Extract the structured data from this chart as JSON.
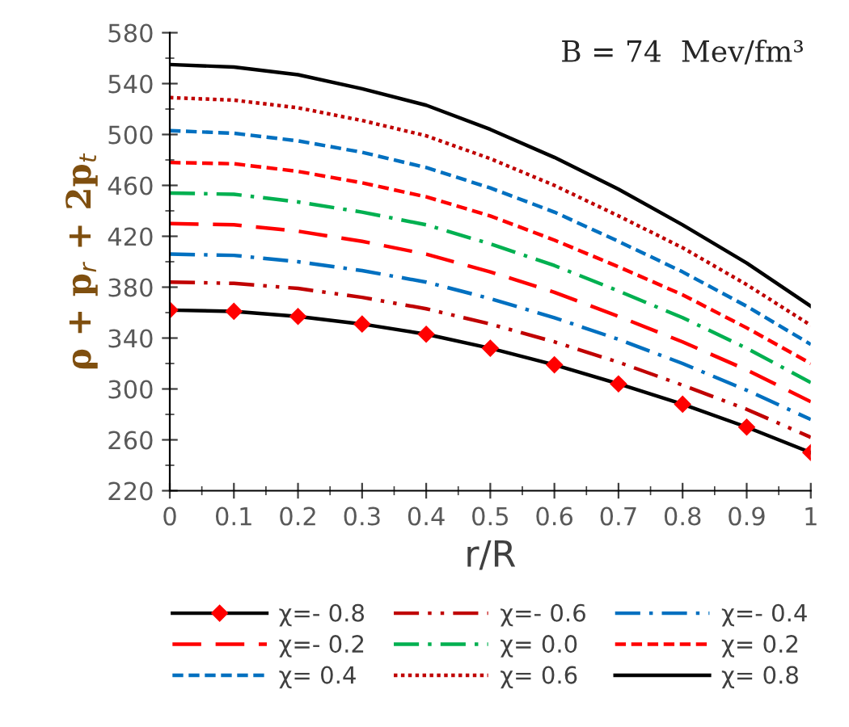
{
  "chart_data": {
    "type": "line",
    "xlabel": "r/R",
    "ylabel": "ρ + p$_{r}$ + 2p$_{t}$",
    "annotations": [
      "B = 74  Mev/fm³"
    ],
    "x": [
      0,
      0.1,
      0.2,
      0.3,
      0.4,
      0.5,
      0.6,
      0.7,
      0.8,
      0.9,
      1
    ],
    "xlim": [
      0,
      1
    ],
    "xticks": [
      0,
      0.1,
      0.2,
      0.3,
      0.4,
      0.5,
      0.6,
      0.7,
      0.8,
      0.9,
      1
    ],
    "ylim": [
      220,
      580
    ],
    "yticks": [
      220,
      260,
      300,
      340,
      380,
      420,
      460,
      500,
      540,
      580
    ],
    "grid": false,
    "legend": "bottom",
    "series": [
      {
        "name": "χ=- 0.8",
        "color": "#000000",
        "line_style": "solid",
        "marker": "diamond",
        "values": [
          362,
          361,
          357,
          351,
          343,
          332,
          319,
          304,
          288,
          270,
          250
        ]
      },
      {
        "name": "χ=- 0.6",
        "color": "#c00000",
        "line_style": "dashdotdot",
        "values": [
          384,
          383,
          379,
          372,
          363,
          351,
          337,
          321,
          303,
          284,
          262
        ]
      },
      {
        "name": "χ=- 0.4",
        "color": "#0070c0",
        "line_style": "dashdot",
        "values": [
          406,
          405,
          400,
          393,
          384,
          371,
          356,
          339,
          320,
          299,
          276
        ]
      },
      {
        "name": "χ=- 0.2",
        "color": "#ff0000",
        "line_style": "longdash",
        "values": [
          430,
          429,
          424,
          416,
          406,
          392,
          376,
          357,
          337,
          315,
          290
        ]
      },
      {
        "name": "χ= 0.0",
        "color": "#00b050",
        "line_style": "dashdot",
        "values": [
          454,
          453,
          447,
          439,
          429,
          414,
          397,
          377,
          356,
          332,
          305
        ]
      },
      {
        "name": "χ= 0.2",
        "color": "#ff0000",
        "line_style": "dashed",
        "values": [
          478,
          477,
          471,
          462,
          451,
          436,
          417,
          396,
          374,
          348,
          320
        ]
      },
      {
        "name": "χ= 0.4",
        "color": "#0070c0",
        "line_style": "dashed",
        "values": [
          503,
          501,
          495,
          486,
          474,
          458,
          439,
          416,
          392,
          365,
          335
        ]
      },
      {
        "name": "χ= 0.6",
        "color": "#c00000",
        "line_style": "dotted",
        "values": [
          529,
          527,
          521,
          511,
          499,
          481,
          460,
          436,
          411,
          382,
          350
        ]
      },
      {
        "name": "χ= 0.8",
        "color": "#000000",
        "line_style": "solid",
        "values": [
          555,
          553,
          547,
          536,
          523,
          504,
          482,
          457,
          429,
          399,
          365
        ]
      }
    ]
  }
}
